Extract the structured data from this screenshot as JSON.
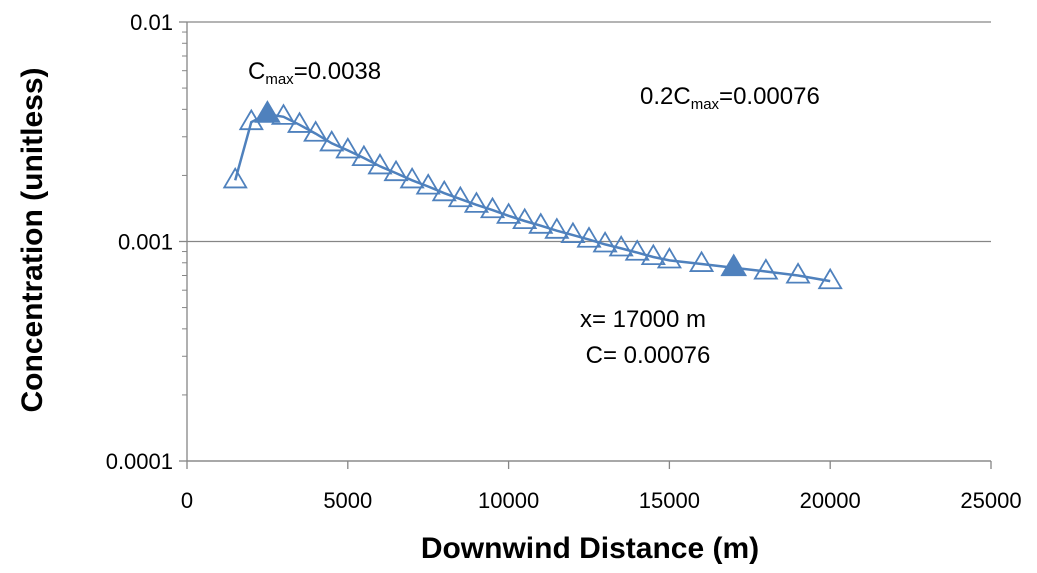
{
  "chart_data": {
    "type": "scatter",
    "xlabel": "Downwind Distance (m)",
    "ylabel": "Concentration (unitless)",
    "xlim": [
      0,
      25000
    ],
    "ylim": [
      0.0001,
      0.01
    ],
    "yscale": "log",
    "x_ticks": [
      "0",
      "5000",
      "10000",
      "15000",
      "20000",
      "25000"
    ],
    "y_ticks": [
      "0.0001",
      "0.001",
      "0.01"
    ],
    "grid": "horizontal major",
    "colors": {
      "series": "#4f81bd",
      "grid": "#868686",
      "axis": "#868686"
    },
    "series": [
      {
        "marker": "open-triangle",
        "x": [
          1500,
          2000,
          2500,
          3000,
          3500,
          4000,
          4500,
          5000,
          5500,
          6000,
          6500,
          7000,
          7500,
          8000,
          8500,
          9000,
          9500,
          10000,
          10500,
          11000,
          11500,
          12000,
          12500,
          13000,
          13500,
          14000,
          14500,
          15000,
          16000,
          17000,
          18000,
          19000,
          20000
        ],
        "y": [
          0.0019,
          0.0035,
          0.0038,
          0.0037,
          0.0034,
          0.0031,
          0.0028,
          0.0026,
          0.0024,
          0.0022,
          0.00205,
          0.0019,
          0.00178,
          0.00166,
          0.00156,
          0.00147,
          0.00139,
          0.00131,
          0.00124,
          0.00118,
          0.00112,
          0.00107,
          0.00102,
          0.00097,
          0.00093,
          0.00089,
          0.00085,
          0.00082,
          0.00079,
          0.00076,
          0.00073,
          0.0007,
          0.00066
        ]
      }
    ],
    "highlights": [
      {
        "x": 2500,
        "y": 0.0038,
        "marker": "filled-triangle"
      },
      {
        "x": 17000,
        "y": 0.00076,
        "marker": "filled-triangle"
      }
    ],
    "annotations": {
      "cmax": {
        "base": "C",
        "sub": "max",
        "rest": "=0.0038"
      },
      "cmax02": {
        "base": "0.2C",
        "sub": "max",
        "rest": "=0.00076"
      },
      "xline": "x= 17000 m",
      "cline": "C= 0.00076"
    }
  }
}
